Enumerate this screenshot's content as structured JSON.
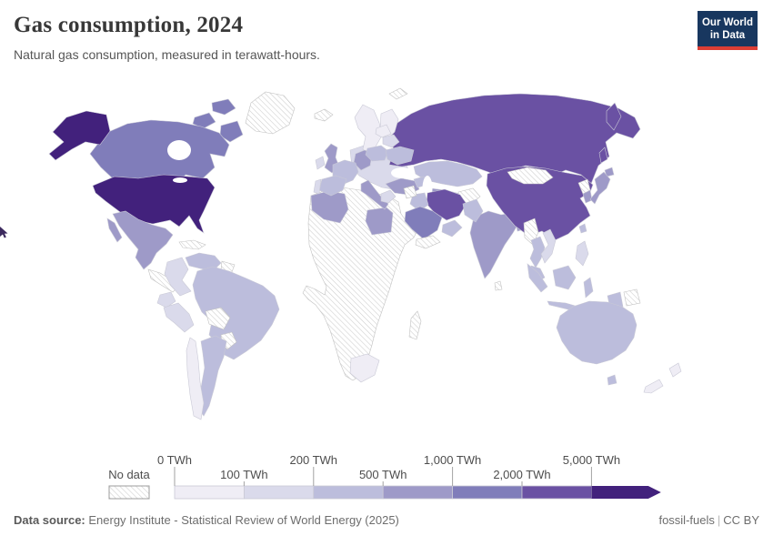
{
  "header": {
    "title": "Gas consumption, 2024",
    "subtitle": "Natural gas consumption, measured in terawatt-hours.",
    "logo": {
      "line1": "Our World",
      "line2": "in Data",
      "bg_color": "#18375f",
      "accent_color": "#dc3e34"
    }
  },
  "footer": {
    "source_label": "Data source:",
    "source_text": " Energy Institute - Statistical Review of World Energy (2025)",
    "link_left": "fossil-fuels",
    "separator": "|",
    "link_right": "CC BY"
  },
  "chart_data": {
    "type": "choropleth-map",
    "title": "Gas consumption, 2024",
    "subtitle": "Natural gas consumption, measured in terawatt-hours.",
    "unit": "TWh",
    "year": "2024",
    "projection": "world",
    "legend": {
      "no_data_label": "No data",
      "no_data_pattern": "diagonal-hatch",
      "tick_labels": [
        "0 TWh",
        "100 TWh",
        "200 TWh",
        "500 TWh",
        "1,000 TWh",
        "2,000 TWh",
        "5,000 TWh"
      ],
      "bin_ranges": [
        "0-100",
        "100-200",
        "200-500",
        "500-1,000",
        "1,000-2,000",
        "2,000-5,000",
        "5,000+"
      ],
      "colors": [
        "#efedf5",
        "#dadaeb",
        "#bcbddc",
        "#9e9ac8",
        "#807dba",
        "#6a51a3",
        "#42217c"
      ]
    },
    "countries": {
      "greenland": "nd",
      "iceland": "nd",
      "svalbard": "nd",
      "canada": 4,
      "usa": 6,
      "mexico": 3,
      "central-america": "nd",
      "cuba": "nd",
      "venezuela": 2,
      "guyanas": "nd",
      "colombia": 1,
      "ecuador": 1,
      "peru": 1,
      "brazil": 2,
      "bolivia": "nd",
      "paraguay": "nd",
      "argentina": 2,
      "chile": 0,
      "norway-sweden": 0,
      "finland": 0,
      "denmark": 1,
      "baltics": 0,
      "uk": 3,
      "ireland": 1,
      "france": 2,
      "spain": 2,
      "portugal": 1,
      "germany": 3,
      "poland": 2,
      "belarus": 1,
      "ukraine": 2,
      "europe-other": 1,
      "italy": 3,
      "greece": 1,
      "turkey": 3,
      "russia": 5,
      "kazakhstan": 2,
      "central-asia": 3,
      "azerbaijan": 2,
      "afghanistan": "nd",
      "iran": 5,
      "iraq": 2,
      "syria": "nd",
      "saudi-arabia": 4,
      "uae-oman": 2,
      "yemen": "nd",
      "algeria": 3,
      "egypt": 3,
      "africa-other": "nd",
      "south-africa": 0,
      "madagascar": "nd",
      "india": 3,
      "pakistan": 2,
      "bangladesh": 3,
      "sri-lanka": "nd",
      "myanmar": "nd",
      "thailand": 2,
      "vietnam": 1,
      "malaysia": 2,
      "indonesia": 2,
      "papua-new-guinea": "nd",
      "philippines": 1,
      "china": 5,
      "mongolia": "nd",
      "north-korea": "nd",
      "south-korea": 3,
      "japan": 3,
      "taiwan": 2,
      "australia": 2,
      "new-zealand": 0
    }
  }
}
